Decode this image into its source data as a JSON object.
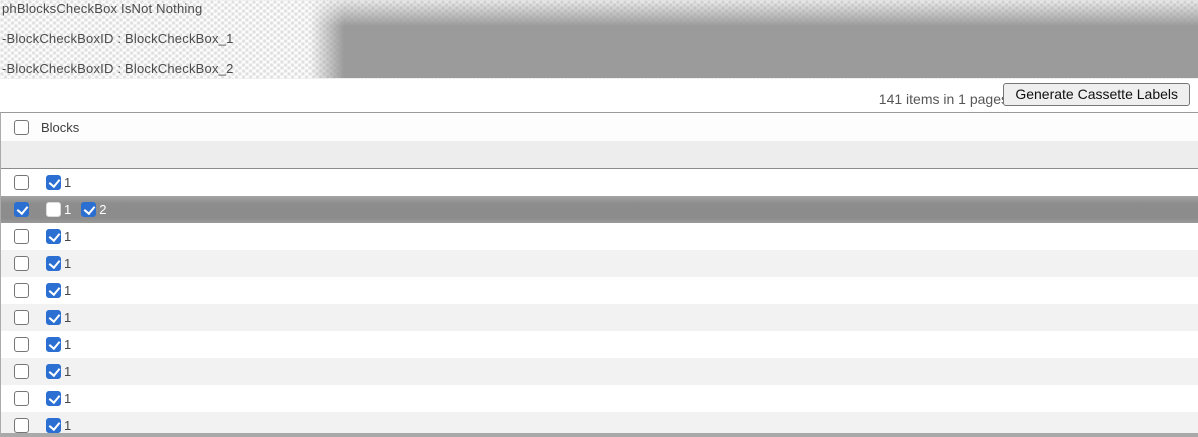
{
  "debug_panel": {
    "lines": [
      "phBlocksCheckBox IsNot Nothing",
      "-BlockCheckBoxID : BlockCheckBox_1",
      "-BlockCheckBoxID : BlockCheckBox_2"
    ]
  },
  "toolbar": {
    "items_summary": "141 items in 1 pages",
    "generate_button_label": "Generate Cassette Labels"
  },
  "grid": {
    "header": {
      "column_label": "Blocks",
      "select_all_checked": false
    },
    "rows": [
      {
        "selected": false,
        "row_checked": false,
        "blocks": [
          {
            "checked": true,
            "label": "1"
          }
        ]
      },
      {
        "selected": true,
        "row_checked": true,
        "blocks": [
          {
            "checked": false,
            "label": "1"
          },
          {
            "checked": true,
            "label": "2"
          }
        ]
      },
      {
        "selected": false,
        "row_checked": false,
        "blocks": [
          {
            "checked": true,
            "label": "1"
          }
        ]
      },
      {
        "selected": false,
        "row_checked": false,
        "blocks": [
          {
            "checked": true,
            "label": "1"
          }
        ]
      },
      {
        "selected": false,
        "row_checked": false,
        "blocks": [
          {
            "checked": true,
            "label": "1"
          }
        ]
      },
      {
        "selected": false,
        "row_checked": false,
        "blocks": [
          {
            "checked": true,
            "label": "1"
          }
        ]
      },
      {
        "selected": false,
        "row_checked": false,
        "blocks": [
          {
            "checked": true,
            "label": "1"
          }
        ]
      },
      {
        "selected": false,
        "row_checked": false,
        "blocks": [
          {
            "checked": true,
            "label": "1"
          }
        ]
      },
      {
        "selected": false,
        "row_checked": false,
        "blocks": [
          {
            "checked": true,
            "label": "1"
          }
        ]
      },
      {
        "selected": false,
        "row_checked": false,
        "blocks": [
          {
            "checked": true,
            "label": "1"
          }
        ]
      }
    ]
  },
  "colors": {
    "checkbox_accent_blue": "#2a6fd1",
    "selected_row_gray": "#8c8c8c",
    "alt_row_gray": "#f2f2f2",
    "overlay_gray": "#9b9b9b"
  }
}
